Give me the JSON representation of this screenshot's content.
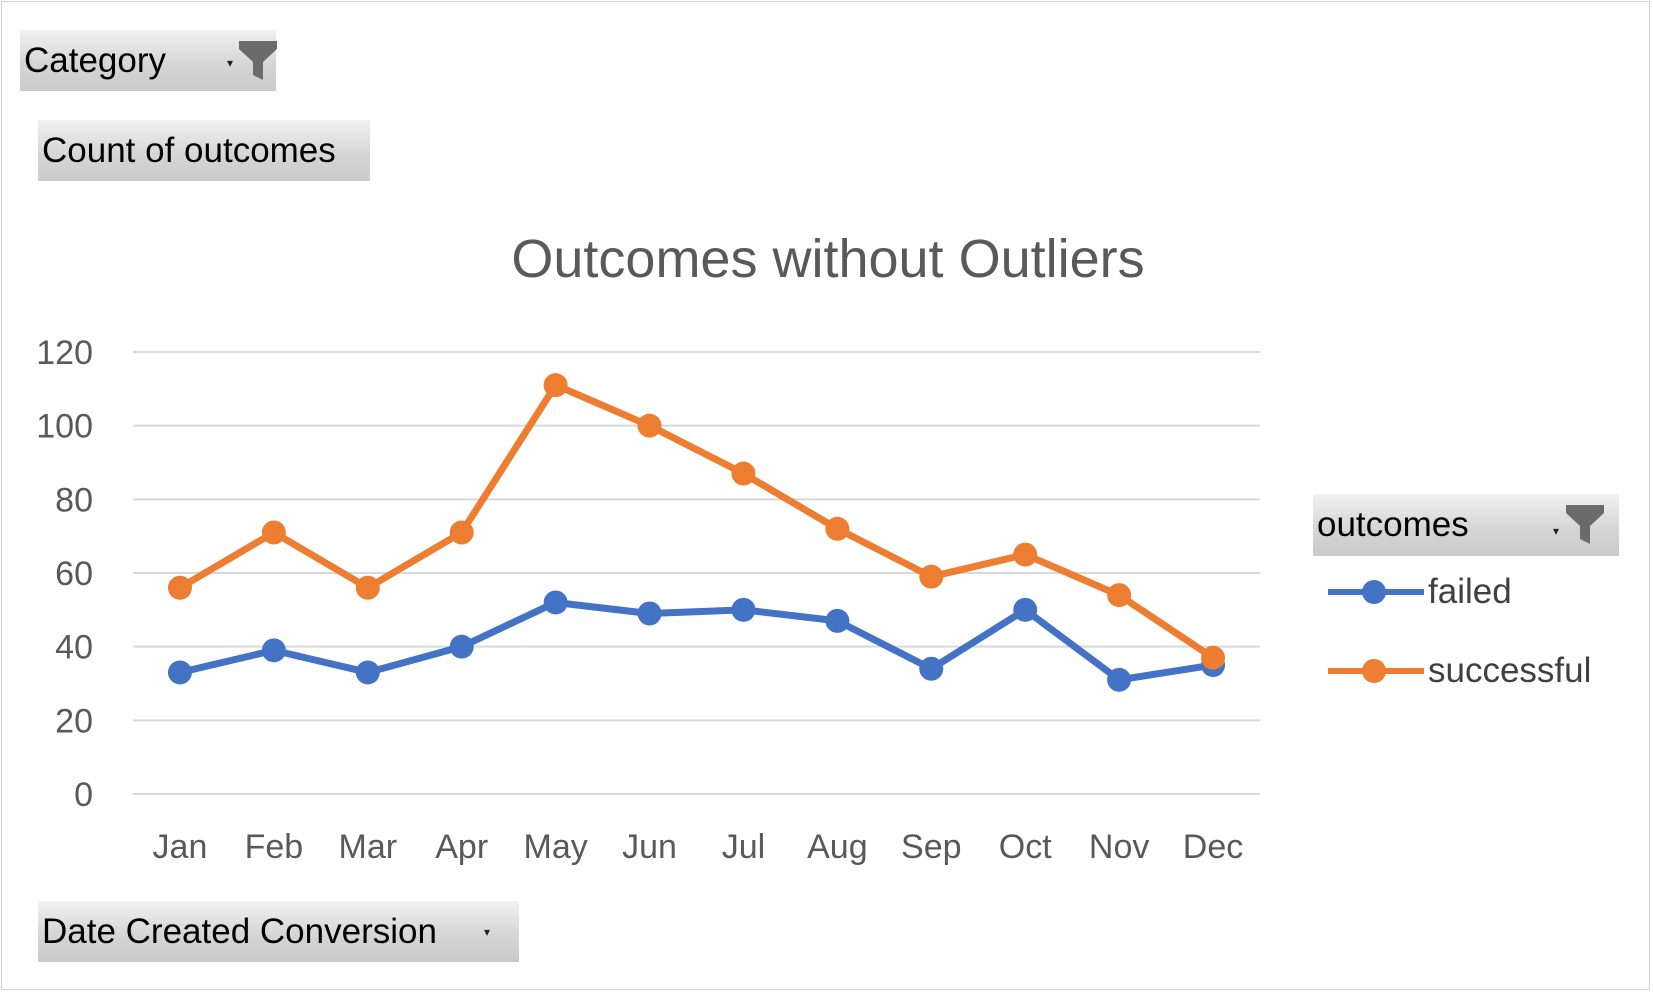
{
  "filters": {
    "category_label": "Category",
    "count_label": "Count of outcomes",
    "date_label": "Date Created Conversion",
    "legend_field_label": "outcomes"
  },
  "icons": {
    "filter": "funnel-icon",
    "dropdown": "dropdown-arrow-icon"
  },
  "chart_data": {
    "type": "line",
    "title": "Outcomes without Outliers",
    "xlabel": "",
    "ylabel": "",
    "categories": [
      "Jan",
      "Feb",
      "Mar",
      "Apr",
      "May",
      "Jun",
      "Jul",
      "Aug",
      "Sep",
      "Oct",
      "Nov",
      "Dec"
    ],
    "ylim": [
      0,
      120
    ],
    "yticks": [
      0,
      20,
      40,
      60,
      80,
      100,
      120
    ],
    "grid": true,
    "legend_position": "right",
    "series": [
      {
        "name": "failed",
        "color": "#4472c4",
        "values": [
          33,
          39,
          33,
          40,
          52,
          49,
          50,
          47,
          34,
          50,
          31,
          35
        ]
      },
      {
        "name": "successful",
        "color": "#ed7d31",
        "values": [
          56,
          71,
          56,
          71,
          111,
          100,
          87,
          72,
          59,
          65,
          54,
          37
        ]
      }
    ]
  }
}
